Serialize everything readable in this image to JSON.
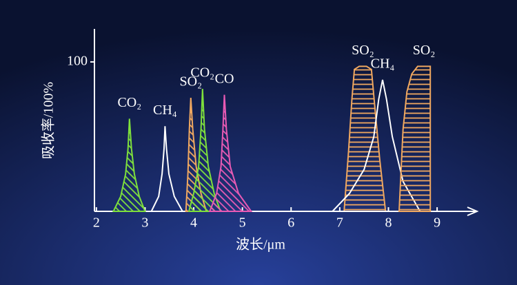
{
  "chart_data": {
    "type": "area",
    "xlabel": "波长/μm",
    "ylabel": "吸收率/100%",
    "xlim": [
      1.96,
      9.82
    ],
    "ylim": [
      0,
      123
    ],
    "xticks": [
      2,
      3,
      4,
      5,
      6,
      7,
      8,
      9
    ],
    "yticks": [
      100
    ],
    "series": [
      {
        "name": "CO₂",
        "color": "#7ee03c",
        "hatch": "diagonal",
        "x": [
          2.35,
          2.5,
          2.6,
          2.65,
          2.68,
          2.72,
          2.78,
          2.88,
          3.0
        ],
        "values": [
          0,
          10,
          25,
          42,
          62,
          42,
          25,
          10,
          0
        ]
      },
      {
        "name": "CH₄",
        "color": "#ffffff",
        "hatch": "none",
        "x": [
          3.13,
          3.28,
          3.35,
          3.39,
          3.41,
          3.44,
          3.49,
          3.6,
          3.77
        ],
        "values": [
          0,
          10,
          25,
          42,
          57,
          42,
          25,
          10,
          0
        ]
      },
      {
        "name": "SO₂",
        "color": "#f0a860",
        "hatch": "diagonal",
        "x": [
          3.84,
          3.88,
          3.91,
          3.94,
          3.98,
          4.05,
          4.15,
          4.26
        ],
        "values": [
          0,
          25,
          55,
          76,
          55,
          30,
          12,
          0
        ]
      },
      {
        "name": "CO₂",
        "color": "#7ee03c",
        "hatch": "diagonal",
        "x": [
          3.9,
          4.0,
          4.1,
          4.15,
          4.18,
          4.22,
          4.3,
          4.42,
          4.55
        ],
        "values": [
          0,
          12,
          30,
          55,
          82,
          55,
          30,
          12,
          0
        ]
      },
      {
        "name": "CO",
        "color": "#e85ab4",
        "hatch": "diagonal",
        "x": [
          4.33,
          4.47,
          4.56,
          4.6,
          4.63,
          4.67,
          4.75,
          4.92,
          5.18
        ],
        "values": [
          0,
          12,
          30,
          55,
          78,
          55,
          30,
          12,
          0
        ]
      },
      {
        "name": "SO₂",
        "color": "#f0a860",
        "hatch": "horizontal",
        "x": [
          7.09,
          7.18,
          7.25,
          7.3,
          7.4,
          7.55,
          7.65,
          7.72,
          7.82,
          7.94
        ],
        "values": [
          0,
          40,
          75,
          95,
          97,
          97,
          95,
          70,
          35,
          0
        ]
      },
      {
        "name": "CH₄",
        "color": "#ffffff",
        "hatch": "none",
        "x": [
          6.85,
          7.2,
          7.5,
          7.7,
          7.8,
          7.88,
          7.96,
          8.08,
          8.3,
          8.65
        ],
        "values": [
          0,
          12,
          28,
          50,
          75,
          88,
          75,
          50,
          20,
          0
        ]
      },
      {
        "name": "SO₂",
        "color": "#f0a860",
        "hatch": "horizontal",
        "x": [
          8.22,
          8.3,
          8.38,
          8.48,
          8.6,
          8.86,
          8.86
        ],
        "values": [
          0,
          55,
          80,
          92,
          97,
          97,
          0
        ]
      }
    ]
  }
}
